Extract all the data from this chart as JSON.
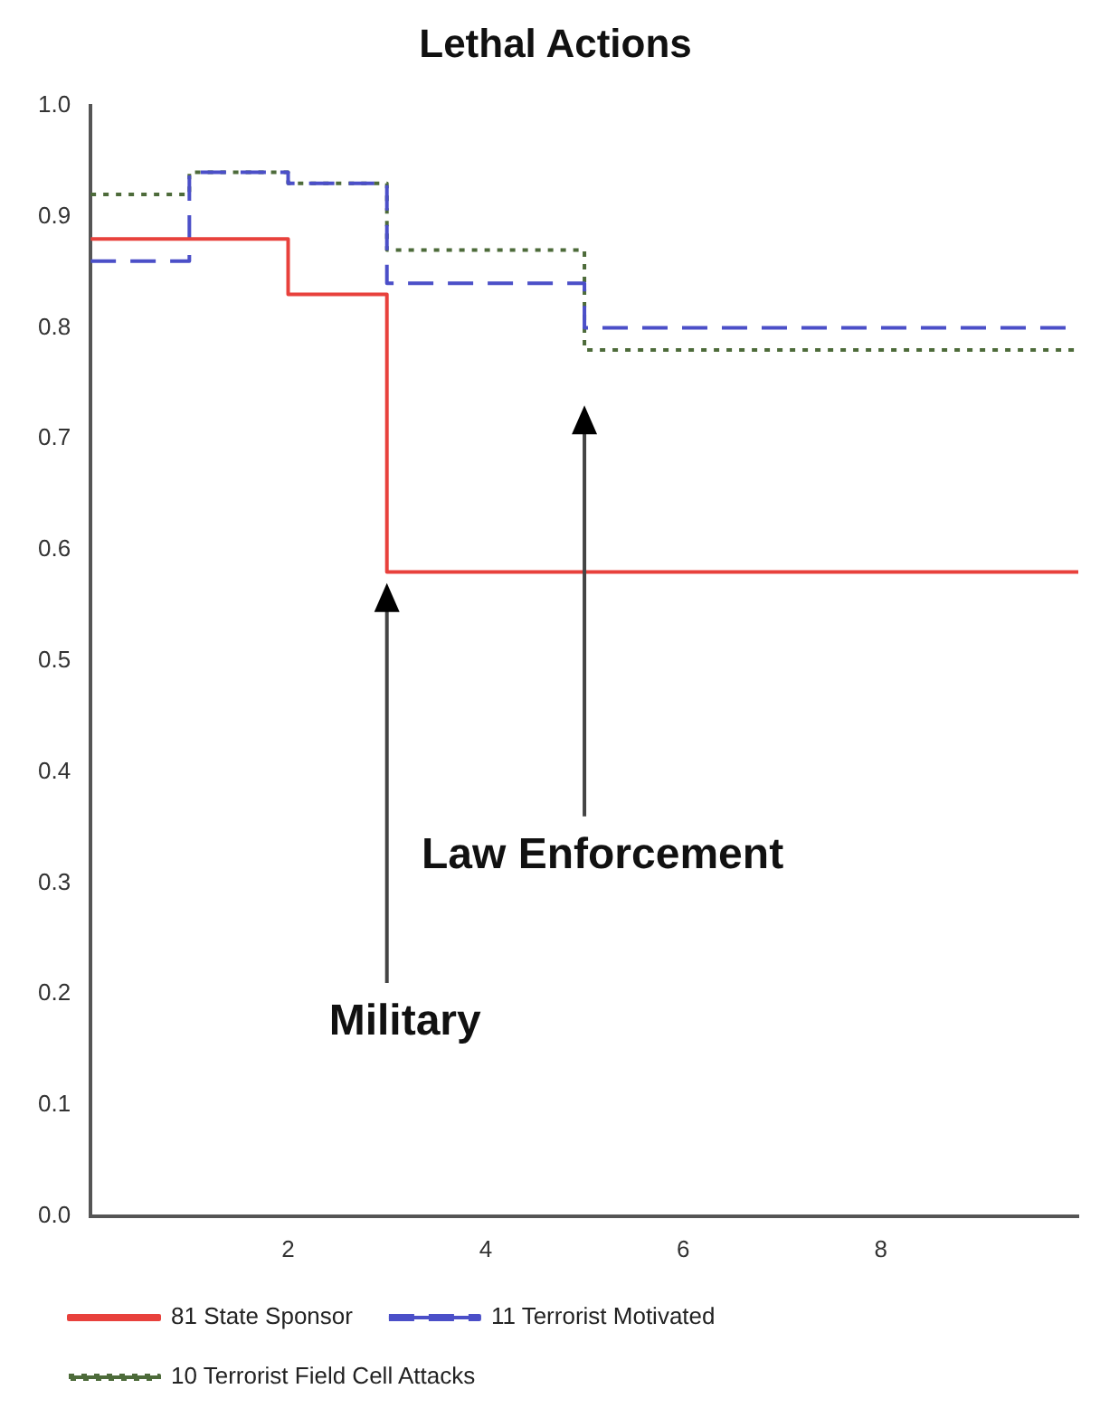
{
  "chart_data": {
    "type": "step",
    "title": "Lethal Actions",
    "xlim": [
      0,
      10
    ],
    "xticks": [
      2,
      4,
      6,
      8
    ],
    "ylim": [
      0,
      1
    ],
    "yticks": [
      {
        "value": 0,
        "label": "0.0"
      },
      0.1,
      0.2,
      0.3,
      0.4,
      0.5,
      0.6,
      0.7,
      0.8,
      0.9,
      {
        "value": 1,
        "label": "1.0"
      }
    ],
    "grid": false,
    "legend": "bottom",
    "series": [
      {
        "name": "81 State Sponsor",
        "color": "#e8413c",
        "line_style": "solid",
        "x": [
          0,
          2,
          3,
          10
        ],
        "values": [
          0.88,
          0.83,
          0.58,
          0.58
        ]
      },
      {
        "name": "11 Terrorist Motivated",
        "color": "#4b4fc8",
        "line_style": "dashed",
        "x": [
          0,
          1,
          2,
          3,
          5,
          10
        ],
        "values": [
          0.86,
          0.94,
          0.93,
          0.84,
          0.8,
          0.8
        ]
      },
      {
        "name": "10 Terrorist Field Cell Attacks",
        "color": "#4d6b3a",
        "line_style": "dotted",
        "x": [
          0,
          1,
          2,
          3,
          5,
          10
        ],
        "values": [
          0.92,
          0.94,
          0.93,
          0.87,
          0.78,
          0.78
        ]
      }
    ],
    "annotations": [
      "Military",
      "Law Enforcement"
    ]
  }
}
